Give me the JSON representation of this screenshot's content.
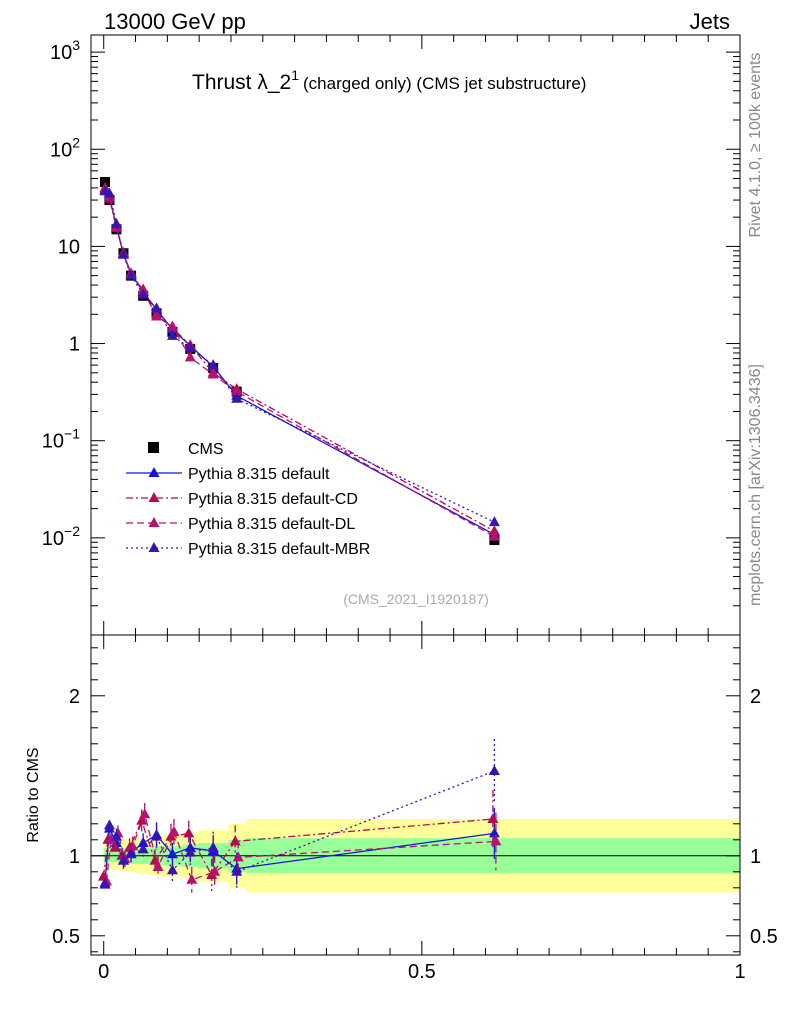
{
  "header": {
    "left": "13000 GeV pp",
    "right": "Jets"
  },
  "side_labels": {
    "rivet": "Rivet 4.1.0, ≥ 100k events",
    "mcplots": "mcplots.cern.ch [arXiv:1306.3436]"
  },
  "colors": {
    "data": "#000000",
    "default": "#1515d9",
    "cd": "#b40c4f",
    "dl": "#b8126e",
    "mbr": "#3a14b0",
    "band_inner": "#99ff99",
    "band_outer": "#ffff99"
  },
  "chart_data": [
    {
      "type": "line",
      "title_main": "Thrust λ_2",
      "title_sup": "1",
      "title_rest": "(charged only) (CMS jet substructure)",
      "analysis": "(CMS_2021_I1920187)",
      "yscale": "log",
      "xlim": [
        -0.02,
        1.0
      ],
      "ylim": [
        0.001,
        1500
      ],
      "yticks": [
        {
          "v": 1000,
          "base": "10",
          "exp": "3"
        },
        {
          "v": 100,
          "base": "10",
          "exp": "2"
        },
        {
          "v": 10,
          "base": "10",
          "exp": ""
        },
        {
          "v": 1,
          "base": "1",
          "exp": ""
        },
        {
          "v": 0.1,
          "base": "10",
          "exp": "−1"
        },
        {
          "v": 0.01,
          "base": "10",
          "exp": "−2"
        }
      ],
      "legend_position": "lower-left",
      "x": [
        0.002,
        0.009,
        0.02,
        0.031,
        0.043,
        0.062,
        0.083,
        0.108,
        0.136,
        0.172,
        0.209,
        0.614
      ],
      "series": [
        {
          "name": "CMS",
          "key": "data",
          "style": "marker",
          "values": [
            46,
            30,
            15,
            8.5,
            5.0,
            3.1,
            2.05,
            1.32,
            0.88,
            0.56,
            0.32,
            0.0095
          ],
          "errors": [
            3,
            2,
            1,
            0.6,
            0.3,
            0.2,
            0.15,
            0.1,
            0.07,
            0.04,
            0.03,
            0.001
          ]
        },
        {
          "name": "Pythia 8.315 default",
          "key": "default",
          "style": "solid",
          "values": [
            38,
            32,
            16,
            8.3,
            5.2,
            3.4,
            2.25,
            1.4,
            0.95,
            0.58,
            0.29,
            0.0108
          ]
        },
        {
          "name": "Pythia 8.315 default-CD",
          "key": "cd",
          "style": "dashdot",
          "values": [
            40,
            31,
            15.5,
            8.6,
            5.1,
            3.6,
            2.0,
            1.45,
            0.96,
            0.5,
            0.34,
            0.0117
          ]
        },
        {
          "name": "Pythia 8.315 default-DL",
          "key": "dl",
          "style": "dashed",
          "values": [
            39,
            33,
            15.8,
            8.4,
            5.3,
            3.5,
            1.9,
            1.5,
            0.72,
            0.48,
            0.32,
            0.0103
          ]
        },
        {
          "name": "Pythia 8.315 default-MBR",
          "key": "mbr",
          "style": "dotted",
          "values": [
            37,
            35,
            17,
            8.2,
            5.0,
            3.2,
            2.3,
            1.2,
            0.9,
            0.6,
            0.27,
            0.0145
          ]
        }
      ]
    },
    {
      "type": "line",
      "ylabel": "Ratio to CMS",
      "xlim": [
        -0.02,
        1.0
      ],
      "ylim": [
        0.38,
        2.38
      ],
      "yticks": [
        0.5,
        1,
        2
      ],
      "xticks": [
        0,
        0.5,
        1
      ],
      "bands": {
        "edges": [
          0.0,
          0.005,
          0.013,
          0.026,
          0.036,
          0.05,
          0.074,
          0.092,
          0.124,
          0.148,
          0.196,
          0.224,
          1.0
        ],
        "inner": [
          0.05,
          0.04,
          0.04,
          0.05,
          0.05,
          0.05,
          0.06,
          0.06,
          0.07,
          0.08,
          0.1,
          0.11
        ],
        "outer": [
          0.1,
          0.09,
          0.09,
          0.1,
          0.1,
          0.11,
          0.12,
          0.13,
          0.14,
          0.16,
          0.2,
          0.23
        ]
      },
      "x": [
        0.002,
        0.009,
        0.02,
        0.031,
        0.043,
        0.062,
        0.083,
        0.108,
        0.136,
        0.172,
        0.209,
        0.614
      ],
      "series": [
        {
          "name": "Pythia 8.315 default",
          "key": "default",
          "style": "solid",
          "values": [
            0.83,
            1.17,
            1.08,
            0.97,
            1.02,
            1.08,
            1.13,
            1.01,
            1.05,
            1.03,
            0.92,
            1.14
          ],
          "errors": [
            0.03,
            0.03,
            0.05,
            0.05,
            0.06,
            0.06,
            0.08,
            0.07,
            0.09,
            0.1,
            0.1,
            0.16
          ]
        },
        {
          "name": "Pythia 8.315 default-CD",
          "key": "cd",
          "style": "dashdot",
          "values": [
            0.87,
            1.1,
            1.05,
            1.0,
            1.05,
            1.22,
            0.97,
            1.12,
            1.14,
            0.88,
            1.09,
            1.23
          ],
          "errors": [
            0.03,
            0.04,
            0.05,
            0.05,
            0.06,
            0.07,
            0.07,
            0.08,
            0.08,
            0.1,
            0.1,
            0.18
          ]
        },
        {
          "name": "Pythia 8.315 default-DL",
          "key": "dl",
          "style": "dashed",
          "values": [
            0.84,
            1.1,
            1.14,
            0.98,
            1.06,
            1.26,
            0.93,
            1.15,
            0.85,
            0.9,
            0.99,
            1.09
          ],
          "errors": [
            0.03,
            0.04,
            0.05,
            0.05,
            0.06,
            0.07,
            0.07,
            0.08,
            0.08,
            0.1,
            0.1,
            0.18
          ]
        },
        {
          "name": "Pythia 8.315 default-MBR",
          "key": "mbr",
          "style": "dotted",
          "values": [
            0.82,
            1.19,
            1.12,
            0.97,
            1.01,
            1.04,
            1.12,
            0.91,
            1.02,
            1.05,
            0.9,
            1.53
          ],
          "errors": [
            0.03,
            0.03,
            0.05,
            0.05,
            0.06,
            0.06,
            0.08,
            0.07,
            0.09,
            0.1,
            0.1,
            0.2
          ]
        }
      ]
    }
  ]
}
